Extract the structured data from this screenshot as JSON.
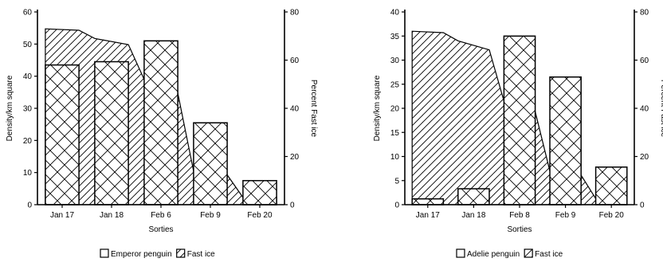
{
  "chart_data": [
    {
      "type": "bar",
      "categories": [
        "Jan 17",
        "Jan 18",
        "Feb 6",
        "Feb 9",
        "Feb 20"
      ],
      "series": [
        {
          "name": "Emperor penguin",
          "values": [
            43.5,
            44.5,
            51,
            25.5,
            7.5
          ],
          "pattern": "crosshatch"
        },
        {
          "name": "Fast ice",
          "type": "area",
          "axis": "right",
          "values": [
            73,
            69,
            52,
            14,
            3
          ],
          "pattern": "diagonal"
        }
      ],
      "xlabel": "Sorties",
      "ylabel": "Density/km square",
      "ylabel_right": "Percent Fast ice",
      "ylim": [
        0,
        60
      ],
      "yticks": [
        0,
        10,
        20,
        30,
        40,
        50,
        60
      ],
      "ylim_right": [
        0,
        80
      ],
      "yticks_right": [
        0,
        20,
        40,
        60,
        80
      ],
      "grid": false,
      "legend_position": "bottom"
    },
    {
      "type": "bar",
      "categories": [
        "Jan 17",
        "Jan 18",
        "Feb 8",
        "Feb 9",
        "Feb 20"
      ],
      "series": [
        {
          "name": "Adelie penguin",
          "values": [
            1.2,
            3.3,
            35,
            26.5,
            7.8
          ],
          "pattern": "crosshatch"
        },
        {
          "name": "Fast ice",
          "type": "area",
          "axis": "right",
          "values": [
            72,
            68,
            43,
            14,
            2.5
          ],
          "pattern": "diagonal"
        }
      ],
      "xlabel": "Sorties",
      "ylabel": "Density/km square",
      "ylabel_right": "Percent Fast ice",
      "ylim": [
        0,
        40
      ],
      "yticks": [
        0,
        5,
        10,
        15,
        20,
        25,
        30,
        35,
        40
      ],
      "ylim_right": [
        0,
        80
      ],
      "yticks_right": [
        0,
        20,
        40,
        60,
        80
      ],
      "grid": false,
      "legend_position": "bottom"
    }
  ],
  "colors": {
    "ink": "#000000",
    "background": "#ffffff"
  }
}
